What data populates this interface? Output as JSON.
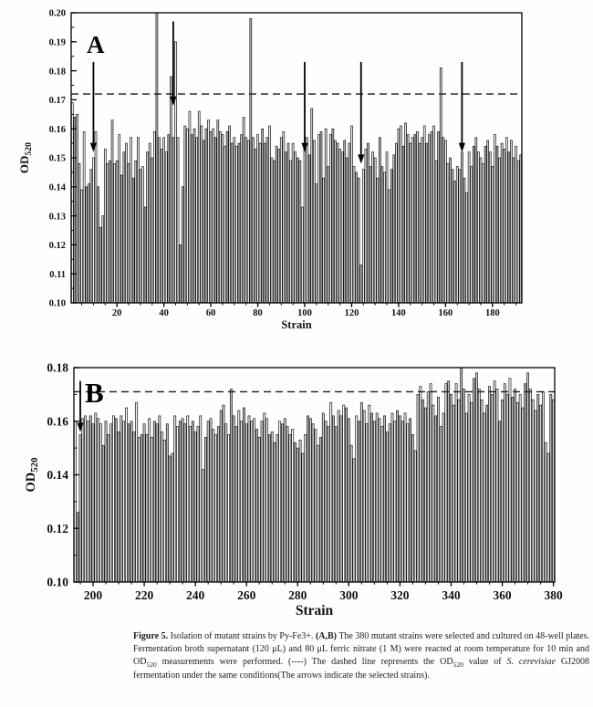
{
  "figure": {
    "caption_segments": [
      {
        "t": "Figure 5.",
        "b": true
      },
      {
        "t": " Isolation of mutant strains by Py-Fe3+. "
      },
      {
        "t": "(A,B)",
        "b": true
      },
      {
        "t": " The 380 mutant strains were selected and cultured on 48-well plates. Fermentation broth supernatant (120 μL) and 80 μL ferric nitrate (1 M) were reacted at room temperature for 10 min and OD"
      },
      {
        "t": "520",
        "sub": true
      },
      {
        "t": " measurements were performed. (----) The dashed line represents the OD"
      },
      {
        "t": "520",
        "sub": true
      },
      {
        "t": " value of "
      },
      {
        "t": "S. cerevisiae",
        "i": true
      },
      {
        "t": " GJ2008 fermentation under the same conditions(The arrows indicate the selected strains)."
      }
    ]
  },
  "chart_data": [
    {
      "type": "bar",
      "panel_letter": "A",
      "xlabel": "Strain",
      "ylabel_base": "OD",
      "ylabel_sub": "520",
      "ylim": [
        0.1,
        0.2
      ],
      "yticks": [
        0.1,
        0.11,
        0.12,
        0.13,
        0.14,
        0.15,
        0.16,
        0.17,
        0.18,
        0.19,
        0.2
      ],
      "ytick_minor_step": 0.005,
      "xticks": [
        20,
        40,
        60,
        80,
        100,
        120,
        140,
        160,
        180
      ],
      "xtick_minor_step": 5,
      "strain_start": 1,
      "dashed_line": 0.172,
      "arrows": [
        {
          "strain": 10,
          "tail": 0.183,
          "tip": 0.152
        },
        {
          "strain": 44,
          "tail": 0.197,
          "tip": 0.168
        },
        {
          "strain": 100,
          "tail": 0.183,
          "tip": 0.152
        },
        {
          "strain": 124,
          "tail": 0.183,
          "tip": 0.148
        },
        {
          "strain": 167,
          "tail": 0.183,
          "tip": 0.152
        }
      ],
      "values": [
        0.169,
        0.164,
        0.165,
        0.148,
        0.139,
        0.159,
        0.14,
        0.141,
        0.146,
        0.15,
        0.159,
        0.14,
        0.126,
        0.13,
        0.153,
        0.148,
        0.149,
        0.163,
        0.148,
        0.149,
        0.158,
        0.144,
        0.152,
        0.155,
        0.148,
        0.157,
        0.143,
        0.149,
        0.157,
        0.146,
        0.147,
        0.133,
        0.152,
        0.155,
        0.15,
        0.159,
        0.205,
        0.157,
        0.153,
        0.157,
        0.152,
        0.158,
        0.178,
        0.157,
        0.19,
        0.157,
        0.12,
        0.14,
        0.161,
        0.16,
        0.166,
        0.158,
        0.16,
        0.157,
        0.166,
        0.161,
        0.156,
        0.16,
        0.163,
        0.159,
        0.16,
        0.157,
        0.163,
        0.159,
        0.158,
        0.154,
        0.159,
        0.161,
        0.155,
        0.157,
        0.154,
        0.155,
        0.158,
        0.164,
        0.157,
        0.156,
        0.198,
        0.157,
        0.153,
        0.158,
        0.155,
        0.16,
        0.155,
        0.157,
        0.161,
        0.15,
        0.149,
        0.154,
        0.153,
        0.157,
        0.159,
        0.152,
        0.155,
        0.149,
        0.155,
        0.152,
        0.15,
        0.149,
        0.133,
        0.155,
        0.157,
        0.151,
        0.167,
        0.156,
        0.141,
        0.158,
        0.159,
        0.143,
        0.16,
        0.147,
        0.158,
        0.16,
        0.156,
        0.155,
        0.153,
        0.152,
        0.156,
        0.15,
        0.155,
        0.161,
        0.147,
        0.145,
        0.143,
        0.113,
        0.146,
        0.153,
        0.155,
        0.147,
        0.152,
        0.15,
        0.143,
        0.157,
        0.147,
        0.145,
        0.152,
        0.139,
        0.146,
        0.151,
        0.155,
        0.16,
        0.161,
        0.154,
        0.162,
        0.158,
        0.155,
        0.157,
        0.158,
        0.159,
        0.155,
        0.157,
        0.161,
        0.155,
        0.158,
        0.159,
        0.161,
        0.149,
        0.159,
        0.181,
        0.157,
        0.156,
        0.148,
        0.15,
        0.146,
        0.142,
        0.147,
        0.146,
        0.152,
        0.143,
        0.138,
        0.152,
        0.147,
        0.154,
        0.157,
        0.152,
        0.15,
        0.148,
        0.154,
        0.156,
        0.152,
        0.147,
        0.158,
        0.154,
        0.15,
        0.155,
        0.153,
        0.157,
        0.152,
        0.156,
        0.15,
        0.154,
        0.149,
        0.151
      ]
    },
    {
      "type": "bar",
      "panel_letter": "B",
      "xlabel": "Strain",
      "ylabel_base": "OD",
      "ylabel_sub": "520",
      "ylim": [
        0.1,
        0.18
      ],
      "yticks": [
        0.1,
        0.12,
        0.14,
        0.16,
        0.18
      ],
      "ytick_minor_step": 0.01,
      "xticks": [
        200,
        220,
        240,
        260,
        280,
        300,
        320,
        340,
        360,
        380
      ],
      "xtick_minor_step": 5,
      "strain_start": 193,
      "dashed_line": 0.171,
      "arrows": [
        {
          "strain": 195,
          "tail": 0.175,
          "tip": 0.156
        }
      ],
      "values": [
        0.16,
        0.126,
        0.155,
        0.161,
        0.162,
        0.16,
        0.162,
        0.159,
        0.163,
        0.161,
        0.159,
        0.151,
        0.16,
        0.155,
        0.159,
        0.162,
        0.161,
        0.156,
        0.162,
        0.16,
        0.165,
        0.159,
        0.16,
        0.156,
        0.167,
        0.154,
        0.155,
        0.159,
        0.155,
        0.161,
        0.154,
        0.16,
        0.159,
        0.162,
        0.156,
        0.153,
        0.159,
        0.147,
        0.148,
        0.162,
        0.158,
        0.16,
        0.161,
        0.159,
        0.162,
        0.158,
        0.16,
        0.156,
        0.158,
        0.162,
        0.142,
        0.154,
        0.16,
        0.161,
        0.157,
        0.155,
        0.158,
        0.164,
        0.166,
        0.159,
        0.155,
        0.172,
        0.162,
        0.158,
        0.164,
        0.16,
        0.165,
        0.159,
        0.162,
        0.16,
        0.161,
        0.157,
        0.154,
        0.16,
        0.163,
        0.161,
        0.155,
        0.156,
        0.152,
        0.155,
        0.16,
        0.159,
        0.161,
        0.158,
        0.155,
        0.157,
        0.152,
        0.15,
        0.153,
        0.148,
        0.155,
        0.162,
        0.161,
        0.159,
        0.157,
        0.151,
        0.154,
        0.163,
        0.16,
        0.158,
        0.167,
        0.162,
        0.158,
        0.164,
        0.162,
        0.166,
        0.165,
        0.161,
        0.151,
        0.146,
        0.162,
        0.16,
        0.167,
        0.164,
        0.159,
        0.166,
        0.163,
        0.16,
        0.163,
        0.161,
        0.158,
        0.162,
        0.156,
        0.159,
        0.163,
        0.16,
        0.164,
        0.162,
        0.16,
        0.163,
        0.159,
        0.161,
        0.155,
        0.149,
        0.17,
        0.173,
        0.168,
        0.165,
        0.171,
        0.174,
        0.166,
        0.162,
        0.169,
        0.158,
        0.163,
        0.174,
        0.175,
        0.17,
        0.166,
        0.174,
        0.168,
        0.18,
        0.172,
        0.163,
        0.17,
        0.167,
        0.176,
        0.178,
        0.172,
        0.168,
        0.163,
        0.166,
        0.173,
        0.17,
        0.175,
        0.172,
        0.16,
        0.168,
        0.174,
        0.17,
        0.176,
        0.169,
        0.172,
        0.167,
        0.17,
        0.165,
        0.174,
        0.178,
        0.172,
        0.168,
        0.164,
        0.17,
        0.166,
        0.171,
        0.152,
        0.148,
        0.17,
        0.168
      ]
    }
  ]
}
